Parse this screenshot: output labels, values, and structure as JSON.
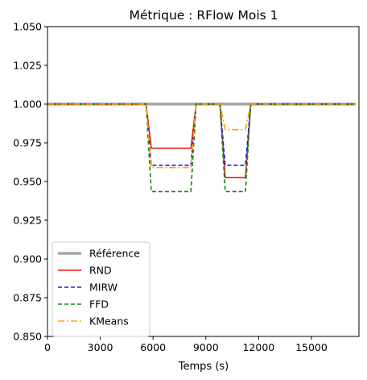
{
  "chart_data": {
    "type": "line",
    "title": "Métrique : RFlow Mois 1",
    "xlabel": "Temps (s)",
    "ylabel": "",
    "xlim": [
      0,
      17700
    ],
    "ylim": [
      0.85,
      1.05
    ],
    "xticks": [
      0,
      3000,
      6000,
      9000,
      12000,
      15000
    ],
    "yticks": [
      0.85,
      0.875,
      0.9,
      0.925,
      0.95,
      0.975,
      1.0,
      1.025,
      1.05
    ],
    "ytick_labels": [
      "0.850",
      "0.875",
      "0.900",
      "0.925",
      "0.950",
      "0.975",
      "1.000",
      "1.025",
      "1.050"
    ],
    "grid": false,
    "legend_position": "lower-left",
    "series": [
      {
        "name": "Référence",
        "color": "#a6a6a6",
        "style": "solid-thick",
        "x": [
          0,
          17500
        ],
        "y": [
          1.0,
          1.0
        ]
      },
      {
        "name": "RND",
        "color": "#e31a1c",
        "style": "solid",
        "x": [
          0,
          5600,
          5900,
          8150,
          8450,
          9800,
          10100,
          11250,
          11550,
          17500
        ],
        "y": [
          1.0,
          1.0,
          0.9715,
          0.9715,
          1.0,
          1.0,
          0.9525,
          0.9525,
          1.0,
          1.0
        ]
      },
      {
        "name": "MIRW",
        "color": "#1f1fd6",
        "style": "dashed",
        "x": [
          0,
          5600,
          5900,
          8150,
          8450,
          9800,
          10100,
          11250,
          11550,
          17500
        ],
        "y": [
          1.0,
          1.0,
          0.9605,
          0.9605,
          1.0,
          1.0,
          0.9605,
          0.9605,
          1.0,
          1.0
        ]
      },
      {
        "name": "FFD",
        "color": "#138a13",
        "style": "dashed",
        "x": [
          0,
          5600,
          5900,
          8150,
          8450,
          9800,
          10100,
          11250,
          11550,
          17500
        ],
        "y": [
          1.0,
          1.0,
          0.9435,
          0.9435,
          1.0,
          1.0,
          0.9435,
          0.9435,
          1.0,
          1.0
        ]
      },
      {
        "name": "KMeans",
        "color": "#ffa500",
        "style": "dashdot",
        "x": [
          0,
          5600,
          5900,
          8150,
          8450,
          9800,
          10100,
          11250,
          11550,
          17500
        ],
        "y": [
          1.0,
          1.0,
          0.959,
          0.959,
          1.0,
          1.0,
          0.9835,
          0.9835,
          1.0,
          1.0
        ]
      }
    ]
  }
}
